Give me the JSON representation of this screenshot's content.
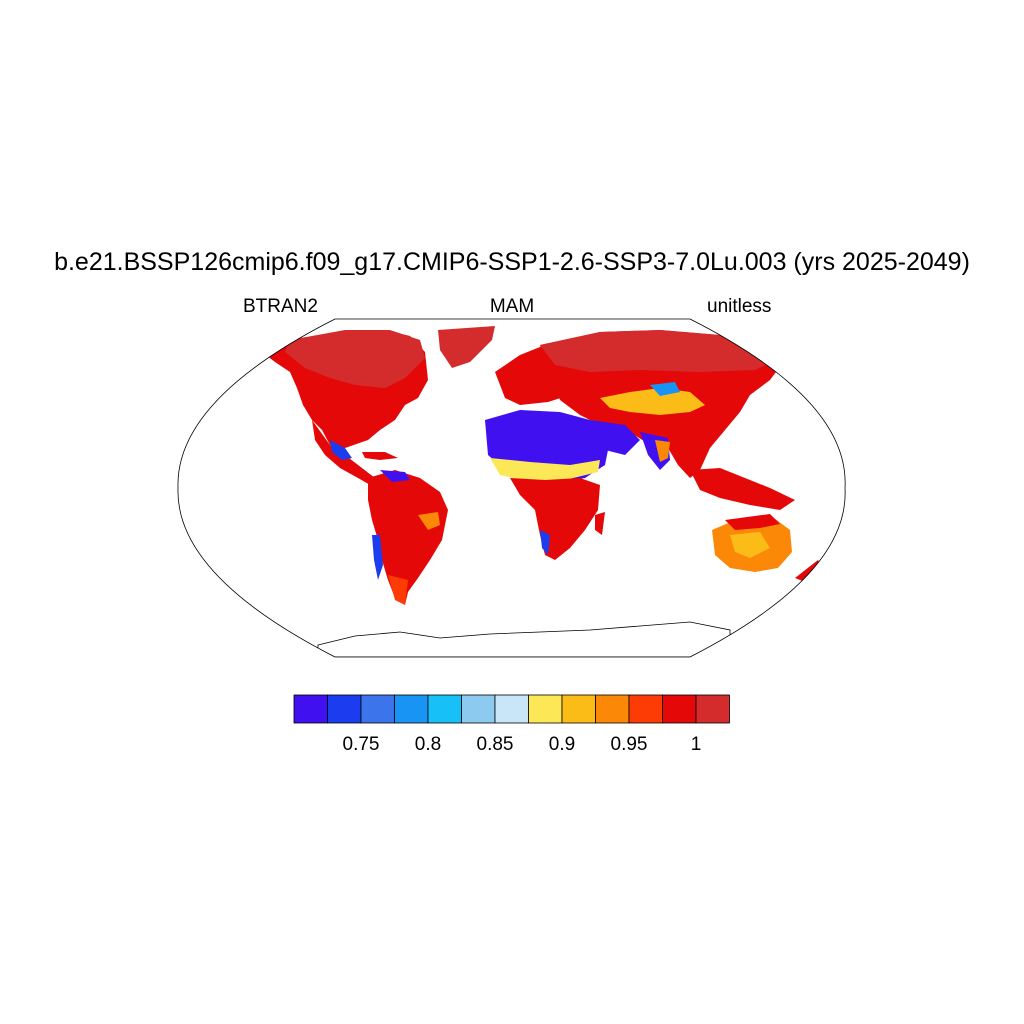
{
  "title": "b.e21.BSSP126cmip6.f09_g17.CMIP6-SSP1-2.6-SSP3-7.0Lu.003 (yrs 2025-2049)",
  "left_label": "BTRAN2",
  "center_label": "MAM",
  "right_label": "unitless",
  "colorbar": {
    "colors": [
      "#4010f0",
      "#1c3cf0",
      "#3c74ec",
      "#1894f4",
      "#18c0f8",
      "#8ccaf0",
      "#c8e6f8",
      "#fce856",
      "#fcbc18",
      "#fc8808",
      "#fc3c04",
      "#e40808",
      "#d42c2c"
    ],
    "tick_labels": [
      "0.75",
      "0.8",
      "0.85",
      "0.9",
      "0.95",
      "1"
    ]
  },
  "map": {
    "projection": "Robinson",
    "variable": "BTRAN2",
    "dominant_value_color": "#e40808"
  }
}
